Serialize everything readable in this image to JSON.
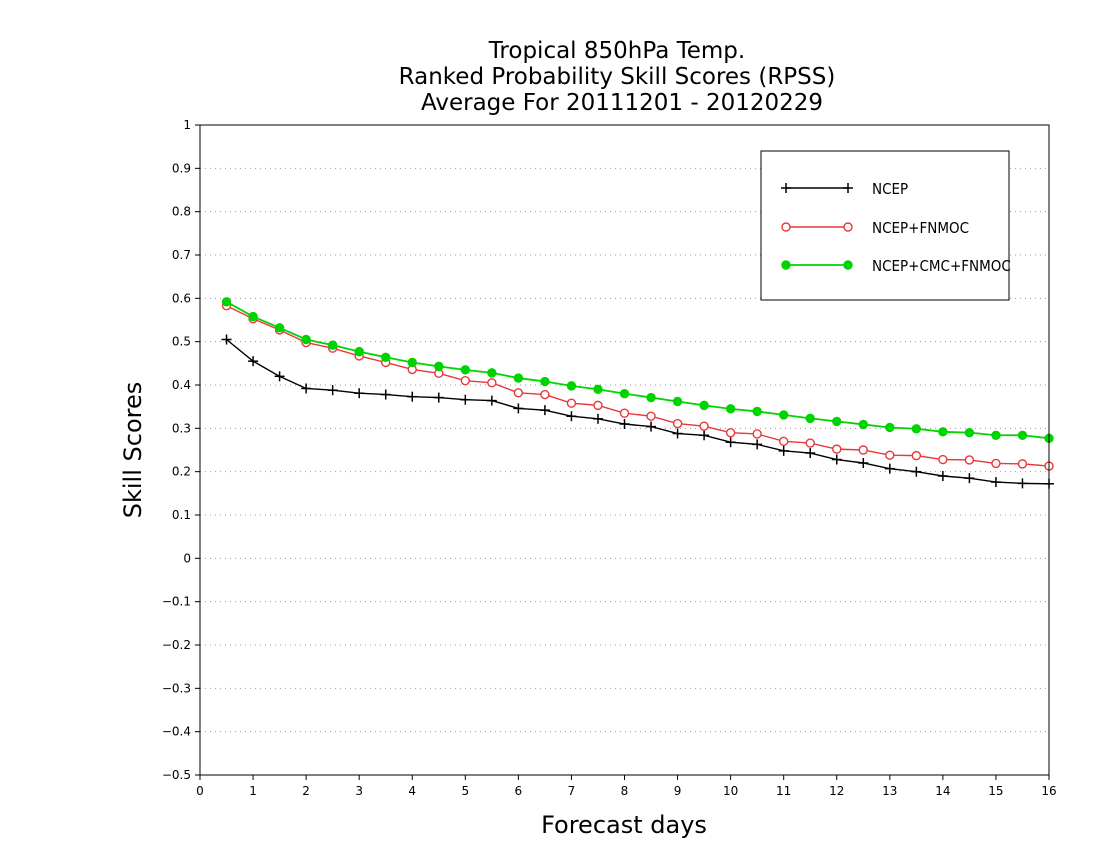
{
  "chart_data": {
    "type": "line",
    "title_lines": [
      "Tropical 850hPa Temp.",
      "Ranked Probability Skill Scores (RPSS)",
      "Average For 20111201 - 20120229"
    ],
    "xlabel": "Forecast days",
    "ylabel": "Skill Scores",
    "xlim": [
      0,
      16
    ],
    "ylim": [
      -0.5,
      1
    ],
    "xticks": [
      "0",
      "1",
      "2",
      "3",
      "4",
      "5",
      "6",
      "7",
      "8",
      "9",
      "10",
      "11",
      "12",
      "13",
      "14",
      "15",
      "16"
    ],
    "yticks": [
      "-0.5",
      "-0.4",
      "-0.3",
      "-0.2",
      "-0.1",
      "0",
      "0.1",
      "0.2",
      "0.3",
      "0.4",
      "0.5",
      "0.6",
      "0.7",
      "0.8",
      "0.9",
      "1"
    ],
    "grid": "horizontal dotted",
    "legend_position": "top-right",
    "x": [
      0.5,
      1,
      1.5,
      2,
      2.5,
      3,
      3.5,
      4,
      4.5,
      5,
      5.5,
      6,
      6.5,
      7,
      7.5,
      8,
      8.5,
      9,
      9.5,
      10,
      10.5,
      11,
      11.5,
      12,
      12.5,
      13,
      13.5,
      14,
      14.5,
      15,
      15.5,
      16
    ],
    "series": [
      {
        "name": "NCEP",
        "color": "#000000",
        "marker": "plus",
        "values": [
          0.505,
          0.455,
          0.42,
          0.392,
          0.388,
          0.381,
          0.378,
          0.373,
          0.371,
          0.366,
          0.364,
          0.346,
          0.342,
          0.328,
          0.322,
          0.31,
          0.304,
          0.288,
          0.284,
          0.268,
          0.263,
          0.248,
          0.243,
          0.228,
          0.22,
          0.207,
          0.2,
          0.19,
          0.185,
          0.176,
          0.173,
          0.172
        ]
      },
      {
        "name": "NCEP+FNMOC",
        "color": "#e8383b",
        "marker": "open-circle",
        "values": [
          0.583,
          0.553,
          0.527,
          0.498,
          0.485,
          0.467,
          0.452,
          0.436,
          0.427,
          0.41,
          0.405,
          0.382,
          0.378,
          0.358,
          0.353,
          0.335,
          0.328,
          0.311,
          0.305,
          0.29,
          0.287,
          0.27,
          0.266,
          0.252,
          0.25,
          0.238,
          0.237,
          0.228,
          0.227,
          0.219,
          0.218,
          0.213
        ]
      },
      {
        "name": "NCEP+CMC+FNMOC",
        "color": "#00d400",
        "marker": "filled-circle",
        "values": [
          0.592,
          0.558,
          0.532,
          0.505,
          0.492,
          0.477,
          0.464,
          0.452,
          0.443,
          0.435,
          0.428,
          0.416,
          0.408,
          0.398,
          0.39,
          0.38,
          0.371,
          0.362,
          0.353,
          0.345,
          0.339,
          0.331,
          0.323,
          0.316,
          0.309,
          0.302,
          0.299,
          0.292,
          0.29,
          0.284,
          0.284,
          0.277
        ]
      }
    ]
  }
}
